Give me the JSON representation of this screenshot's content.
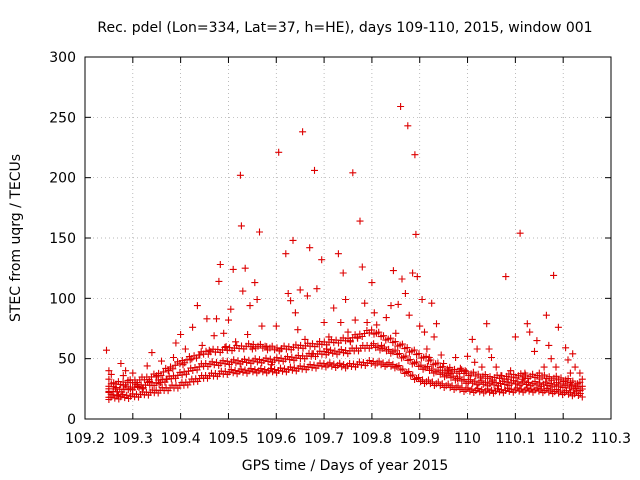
{
  "chart_data": {
    "type": "scatter",
    "title": "Rec. pdel (Lon=334, Lat=37, h=HE), days 109-110, 2015, window 001",
    "xlabel": "GPS time / Days of year 2015",
    "ylabel": "STEC from uqrg / TECUs",
    "xlim": [
      109.2,
      110.3
    ],
    "ylim": [
      0,
      300
    ],
    "xticks": [
      109.2,
      109.3,
      109.4,
      109.5,
      109.6,
      109.7,
      109.8,
      109.9,
      110.0,
      110.1,
      110.2,
      110.3
    ],
    "xtick_labels": [
      "109.2",
      "109.3",
      "109.4",
      "109.5",
      "109.6",
      "109.7",
      "109.8",
      "109.9",
      "110",
      "110.1",
      "110.2",
      "110.3"
    ],
    "yticks": [
      0,
      50,
      100,
      150,
      200,
      250,
      300
    ],
    "ytick_labels": [
      "0",
      "50",
      "100",
      "150",
      "200",
      "250",
      "300"
    ],
    "grid": true,
    "marker": "plus",
    "color": "#dd0000",
    "series": [
      {
        "points": [
          [
            109.245,
            57
          ],
          [
            109.25,
            40
          ],
          [
            109.25,
            33
          ],
          [
            109.25,
            25
          ],
          [
            109.25,
            22
          ],
          [
            109.25,
            18
          ],
          [
            109.255,
            37
          ],
          [
            109.26,
            30
          ],
          [
            109.265,
            26
          ],
          [
            109.27,
            20
          ],
          [
            109.275,
            46
          ],
          [
            109.28,
            36
          ],
          [
            109.28,
            28
          ],
          [
            109.285,
            40
          ],
          [
            109.29,
            32
          ],
          [
            109.295,
            25
          ],
          [
            109.3,
            38
          ],
          [
            109.305,
            30
          ],
          [
            109.31,
            27
          ],
          [
            109.32,
            25
          ],
          [
            109.33,
            44
          ],
          [
            109.335,
            31
          ],
          [
            109.34,
            55
          ],
          [
            109.35,
            36
          ],
          [
            109.355,
            29
          ],
          [
            109.36,
            48
          ],
          [
            109.37,
            33
          ],
          [
            109.375,
            40
          ],
          [
            109.385,
            51
          ],
          [
            109.39,
            63
          ],
          [
            109.4,
            70
          ],
          [
            109.405,
            45
          ],
          [
            109.41,
            58
          ],
          [
            109.42,
            49
          ],
          [
            109.425,
            76
          ],
          [
            109.435,
            94
          ],
          [
            109.44,
            53
          ],
          [
            109.445,
            61
          ],
          [
            109.455,
            83
          ],
          [
            109.46,
            57
          ],
          [
            109.47,
            69
          ],
          [
            109.475,
            83
          ],
          [
            109.48,
            114
          ],
          [
            109.483,
            128
          ],
          [
            109.49,
            71
          ],
          [
            109.495,
            60
          ],
          [
            109.5,
            82
          ],
          [
            109.505,
            91
          ],
          [
            109.51,
            124
          ],
          [
            109.515,
            64
          ],
          [
            109.525,
            202
          ],
          [
            109.527,
            160
          ],
          [
            109.53,
            106
          ],
          [
            109.535,
            125
          ],
          [
            109.54,
            70
          ],
          [
            109.545,
            94
          ],
          [
            109.55,
            58
          ],
          [
            109.555,
            113
          ],
          [
            109.56,
            99
          ],
          [
            109.565,
            155
          ],
          [
            109.57,
            77
          ],
          [
            109.58,
            60
          ],
          [
            109.59,
            45
          ],
          [
            109.6,
            77
          ],
          [
            109.605,
            221
          ],
          [
            109.61,
            58
          ],
          [
            109.62,
            137
          ],
          [
            109.625,
            104
          ],
          [
            109.63,
            98
          ],
          [
            109.635,
            148
          ],
          [
            109.64,
            88
          ],
          [
            109.645,
            74
          ],
          [
            109.65,
            107
          ],
          [
            109.655,
            238
          ],
          [
            109.66,
            66
          ],
          [
            109.665,
            102
          ],
          [
            109.67,
            142
          ],
          [
            109.675,
            54
          ],
          [
            109.68,
            206
          ],
          [
            109.685,
            108
          ],
          [
            109.69,
            62
          ],
          [
            109.695,
            132
          ],
          [
            109.7,
            80
          ],
          [
            109.705,
            58
          ],
          [
            109.71,
            68
          ],
          [
            109.72,
            92
          ],
          [
            109.73,
            137
          ],
          [
            109.735,
            80
          ],
          [
            109.74,
            121
          ],
          [
            109.745,
            99
          ],
          [
            109.75,
            72
          ],
          [
            109.755,
            64
          ],
          [
            109.76,
            204
          ],
          [
            109.765,
            82
          ],
          [
            109.77,
            67
          ],
          [
            109.775,
            164
          ],
          [
            109.78,
            126
          ],
          [
            109.785,
            96
          ],
          [
            109.79,
            80
          ],
          [
            109.8,
            113
          ],
          [
            109.805,
            88
          ],
          [
            109.81,
            78
          ],
          [
            109.82,
            61
          ],
          [
            109.83,
            84
          ],
          [
            109.84,
            94
          ],
          [
            109.845,
            123
          ],
          [
            109.85,
            71
          ],
          [
            109.855,
            95
          ],
          [
            109.86,
            259
          ],
          [
            109.863,
            116
          ],
          [
            109.87,
            104
          ],
          [
            109.875,
            243
          ],
          [
            109.878,
            86
          ],
          [
            109.885,
            121
          ],
          [
            109.89,
            219
          ],
          [
            109.892,
            153
          ],
          [
            109.895,
            118
          ],
          [
            109.9,
            77
          ],
          [
            109.905,
            99
          ],
          [
            109.91,
            72
          ],
          [
            109.915,
            58
          ],
          [
            109.92,
            51
          ],
          [
            109.925,
            96
          ],
          [
            109.93,
            68
          ],
          [
            109.935,
            79
          ],
          [
            109.945,
            53
          ],
          [
            109.95,
            46
          ],
          [
            109.96,
            40
          ],
          [
            109.965,
            38
          ],
          [
            109.975,
            51
          ],
          [
            109.985,
            42
          ],
          [
            109.995,
            40
          ],
          [
            110.0,
            52
          ],
          [
            110.01,
            66
          ],
          [
            110.015,
            47
          ],
          [
            110.02,
            58
          ],
          [
            110.03,
            43
          ],
          [
            110.04,
            79
          ],
          [
            110.045,
            58
          ],
          [
            110.05,
            51
          ],
          [
            110.06,
            43
          ],
          [
            110.07,
            36
          ],
          [
            110.08,
            118
          ],
          [
            110.085,
            33
          ],
          [
            110.09,
            40
          ],
          [
            110.1,
            68
          ],
          [
            110.11,
            154
          ],
          [
            110.115,
            33
          ],
          [
            110.12,
            38
          ],
          [
            110.125,
            79
          ],
          [
            110.13,
            72
          ],
          [
            110.14,
            56
          ],
          [
            110.145,
            65
          ],
          [
            110.15,
            38
          ],
          [
            110.16,
            43
          ],
          [
            110.165,
            86
          ],
          [
            110.17,
            61
          ],
          [
            110.175,
            50
          ],
          [
            110.18,
            119
          ],
          [
            110.185,
            43
          ],
          [
            110.19,
            76
          ],
          [
            110.2,
            31
          ],
          [
            110.205,
            59
          ],
          [
            110.21,
            49
          ],
          [
            110.215,
            38
          ],
          [
            110.22,
            54
          ],
          [
            110.225,
            43
          ],
          [
            110.235,
            38
          ],
          [
            110.24,
            33
          ]
        ]
      }
    ],
    "bands": [
      {
        "x": [
          109.25,
          109.3,
          109.35,
          109.4,
          109.45,
          109.5,
          109.55,
          109.6,
          109.65,
          109.7,
          109.75,
          109.8,
          109.85,
          109.9,
          109.95,
          110.0,
          110.05,
          110.1,
          110.15,
          110.2,
          110.24
        ],
        "y": [
          18,
          19,
          23,
          28,
          35,
          39,
          40,
          40,
          42,
          45,
          44,
          47,
          44,
          32,
          28,
          24,
          23,
          24,
          24,
          22,
          20
        ],
        "count": 12
      },
      {
        "x": [
          109.25,
          109.3,
          109.35,
          109.4,
          109.45,
          109.5,
          109.55,
          109.6,
          109.65,
          109.7,
          109.75,
          109.8,
          109.85,
          109.9,
          109.95,
          110.0,
          110.05,
          110.1,
          110.15,
          110.2,
          110.24
        ],
        "y": [
          22,
          26,
          30,
          37,
          45,
          47,
          48,
          49,
          51,
          55,
          56,
          61,
          55,
          44,
          37,
          31,
          29,
          30,
          29,
          28,
          24
        ],
        "count": 11
      },
      {
        "x": [
          109.25,
          109.3,
          109.35,
          109.4,
          109.45,
          109.5,
          109.55,
          109.6,
          109.65,
          109.7,
          109.75,
          109.8,
          109.85,
          109.9,
          109.95,
          110.0,
          110.05,
          110.1,
          110.15,
          110.2,
          110.24
        ],
        "y": [
          28,
          31,
          36,
          47,
          55,
          58,
          61,
          58,
          60,
          63,
          66,
          73,
          63,
          53,
          42,
          38,
          34,
          36,
          35,
          33,
          28
        ],
        "count": 10
      }
    ]
  }
}
